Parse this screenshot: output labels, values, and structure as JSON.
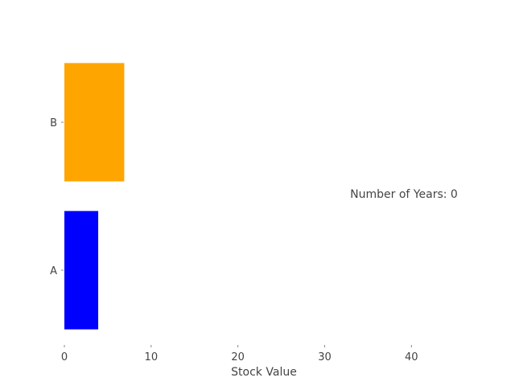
{
  "chart_data": {
    "type": "bar",
    "orientation": "horizontal",
    "categories": [
      "A",
      "B"
    ],
    "values": [
      3.9,
      6.9
    ],
    "colors": [
      "#0000ff",
      "#ffa500"
    ],
    "title": "",
    "xlabel": "Stock Value",
    "ylabel": "",
    "xlim": [
      0,
      46
    ],
    "xticks": [
      0,
      10,
      20,
      30,
      40
    ],
    "grid": false,
    "legend": "none",
    "annotation": "Number of Years: 0"
  }
}
